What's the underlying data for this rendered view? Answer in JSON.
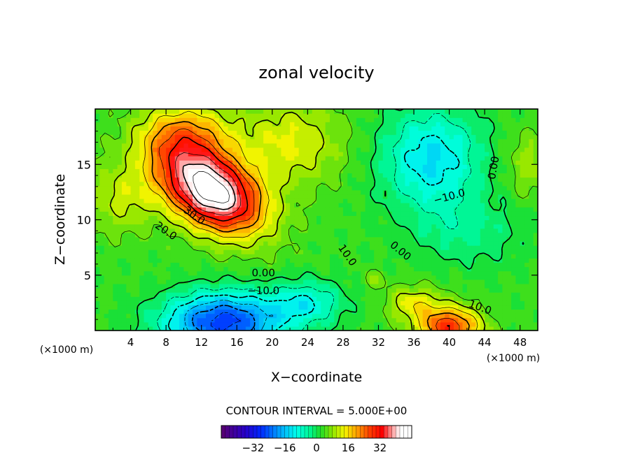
{
  "chart_data": {
    "type": "contour",
    "title": "zonal velocity",
    "xlabel": "X−coordinate",
    "ylabel": "Z−coordinate",
    "x_units_left": "(×1000 m)",
    "x_units_right": "(×1000 m)",
    "xlim": [
      0,
      50
    ],
    "ylim": [
      0,
      20
    ],
    "x_ticks": [
      4,
      8,
      12,
      16,
      20,
      24,
      28,
      32,
      36,
      40,
      44,
      48
    ],
    "x_tick_labels": [
      "4",
      "8",
      "12",
      "16",
      "20",
      "24",
      "28",
      "32",
      "36",
      "40",
      "44",
      "48"
    ],
    "y_ticks": [
      5,
      10,
      15
    ],
    "y_tick_labels": [
      "5",
      "10",
      "15"
    ],
    "contour_interval_text": "CONTOUR INTERVAL = 5.000E+00",
    "contour_interval": 5.0,
    "features": [
      {
        "name": "upper jet maximum",
        "x": 14.5,
        "z": 12.2,
        "value": 40
      },
      {
        "name": "lower reversed jet minimum",
        "x": 14.5,
        "z": 1.0,
        "value": -28
      },
      {
        "name": "upper right minimum",
        "x": 38,
        "z": 15.5,
        "value": -14
      },
      {
        "name": "surface maximum right",
        "x": 40,
        "z": 0.5,
        "value": 30
      },
      {
        "name": "small max near center",
        "x": 31.5,
        "z": 4.6,
        "value": 8
      }
    ],
    "contour_labels": [
      {
        "text": "30.0",
        "x": 11.2,
        "z": 10.4,
        "angle": 35
      },
      {
        "text": "20.0",
        "x": 8.0,
        "z": 9.0,
        "angle": 35
      },
      {
        "text": "10.0",
        "x": 28.5,
        "z": 6.8,
        "angle": 55
      },
      {
        "text": "0.00",
        "x": 34.5,
        "z": 7.2,
        "angle": 40
      },
      {
        "text": "0.00",
        "x": 19.0,
        "z": 5.2,
        "angle": 0
      },
      {
        "text": "−10.0",
        "x": 19.0,
        "z": 3.6,
        "angle": 0
      },
      {
        "text": "−10.0",
        "x": 40.0,
        "z": 12.1,
        "angle": -15
      },
      {
        "text": "0.00",
        "x": 45.0,
        "z": 14.7,
        "angle": -80
      },
      {
        "text": "10.0",
        "x": 43.5,
        "z": 2.1,
        "angle": 20
      }
    ],
    "colorbar": {
      "ticks": [
        -32,
        -16,
        0,
        16,
        32
      ],
      "tick_labels": [
        "−32",
        "−16",
        "0",
        "16",
        "32"
      ],
      "range": [
        -48,
        48
      ],
      "colormap": "rainbow (purple-blue-cyan-green-yellow-red-white)"
    }
  }
}
